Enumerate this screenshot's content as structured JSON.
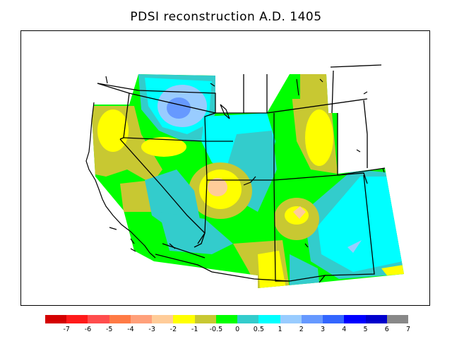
{
  "title": "PDSI reconstruction A.D. 1405",
  "legend": {
    "colors": [
      "#d40000",
      "#ff1a1a",
      "#ff4d4d",
      "#ff7a45",
      "#ffa07a",
      "#ffcc99",
      "#ffff00",
      "#c8c832",
      "#00ff00",
      "#33cccc",
      "#00ffff",
      "#99ccff",
      "#6699ff",
      "#3366ff",
      "#0000ff",
      "#0000cc",
      "#888888"
    ],
    "labels": [
      "-7",
      "-6",
      "-5",
      "-4",
      "-3",
      "-2",
      "-1",
      "-0.5",
      "0",
      "0.5",
      "1",
      "2",
      "3",
      "4",
      "5",
      "6",
      "7"
    ]
  },
  "colors": {
    "wet_light": "#99ccff",
    "wet_medium": "#6699ff",
    "near_normal_wet": "#00ffff",
    "slight_wet": "#33cccc",
    "normal": "#00ff00",
    "slight_dry": "#c8c832",
    "dry": "#ffff00",
    "moderate_dry": "#ffcc99"
  }
}
